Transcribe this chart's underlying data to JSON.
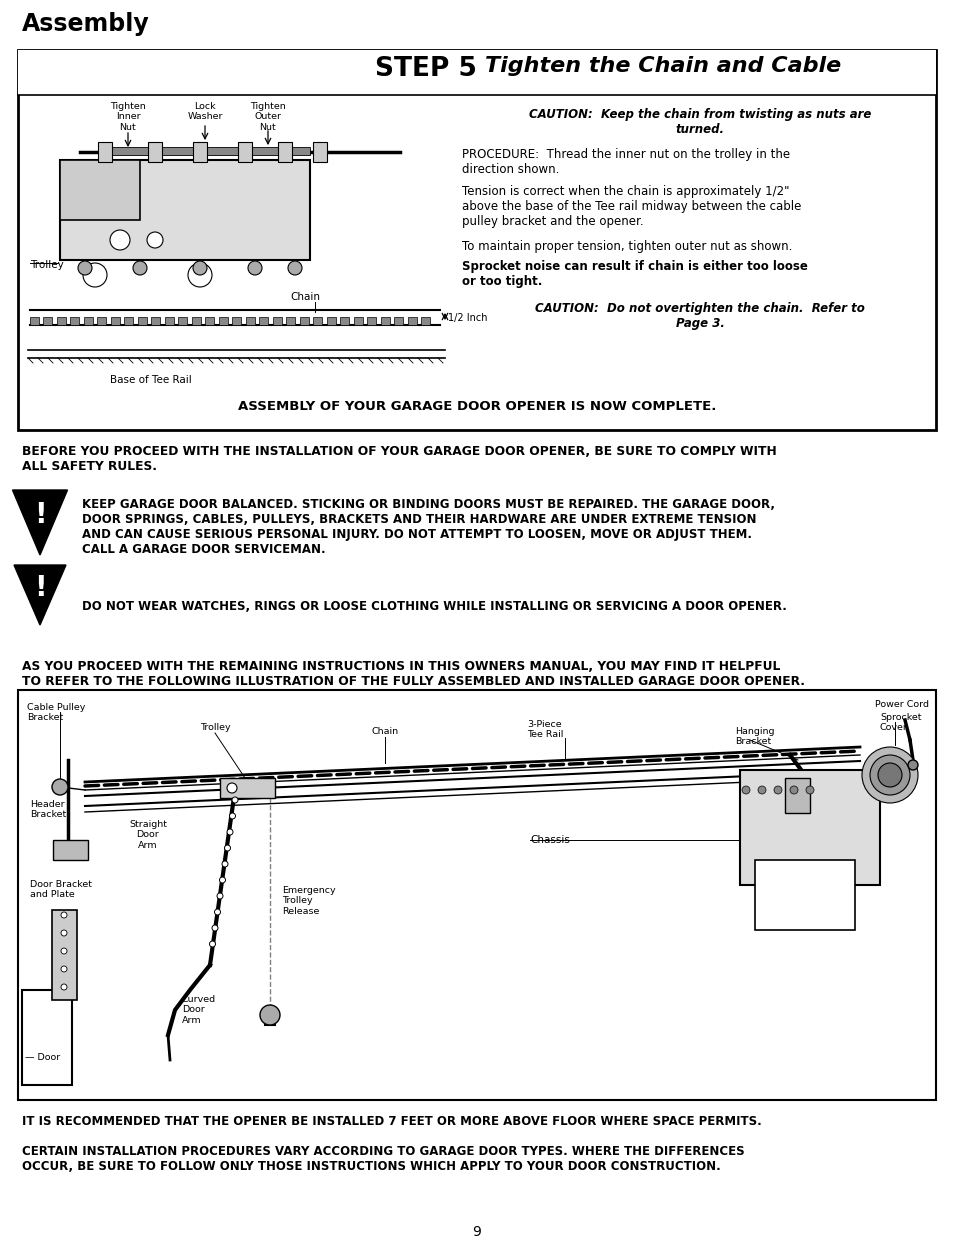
{
  "title": "Assembly",
  "step_title_bold": "STEP 5",
  "step_title_italic": "Tighten the Chain and Cable",
  "bg_color": "#ffffff",
  "text_color": "#000000",
  "page_number": "9",
  "before_text": "BEFORE YOU PROCEED WITH THE INSTALLATION OF YOUR GARAGE DOOR OPENER, BE SURE TO COMPLY WITH\nALL SAFETY RULES.",
  "warning1_text": "KEEP GARAGE DOOR BALANCED. STICKING OR BINDING DOORS MUST BE REPAIRED. THE GARAGE DOOR,\nDOOR SPRINGS, CABLES, PULLEYS, BRACKETS AND THEIR HARDWARE ARE UNDER EXTREME TENSION\nAND CAN CAUSE SERIOUS PERSONAL INJURY. DO NOT ATTEMPT TO LOOSEN, MOVE OR ADJUST THEM.\nCALL A GARAGE DOOR SERVICEMAN.",
  "warning2_text": "DO NOT WEAR WATCHES, RINGS OR LOOSE CLOTHING WHILE INSTALLING OR SERVICING A DOOR OPENER.",
  "proceed_text": "AS YOU PROCEED WITH THE REMAINING INSTRUCTIONS IN THIS OWNERS MANUAL, YOU MAY FIND IT HELPFUL\nTO REFER TO THE FOLLOWING ILLUSTRATION OF THE FULLY ASSEMBLED AND INSTALLED GARAGE DOOR OPENER.",
  "bottom_text1": "IT IS RECOMMENDED THAT THE OPENER BE INSTALLED 7 FEET OR MORE ABOVE FLOOR WHERE SPACE PERMITS.",
  "bottom_text2": "CERTAIN INSTALLATION PROCEDURES VARY ACCORDING TO GARAGE DOOR TYPES. WHERE THE DIFFERENCES\nOCCUR, BE SURE TO FOLLOW ONLY THOSE INSTRUCTIONS WHICH APPLY TO YOUR DOOR CONSTRUCTION.",
  "assembly_complete": "ASSEMBLY OF YOUR GARAGE DOOR OPENER IS NOW COMPLETE."
}
